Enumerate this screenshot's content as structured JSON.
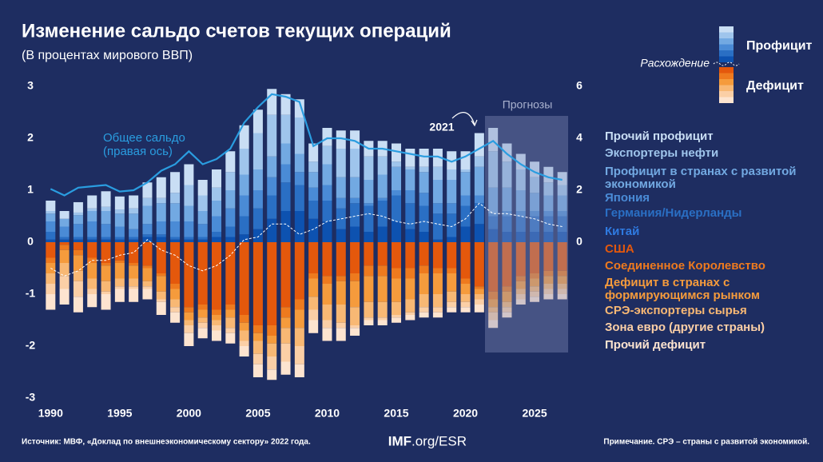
{
  "chart_data": {
    "type": "bar",
    "title": "Изменение сальдо счетов текущих операций",
    "subtitle": "(В процентах мирового ВВП)",
    "x": [
      1990,
      1991,
      1992,
      1993,
      1994,
      1995,
      1996,
      1997,
      1998,
      1999,
      2000,
      2001,
      2002,
      2003,
      2004,
      2005,
      2006,
      2007,
      2008,
      2009,
      2010,
      2011,
      2012,
      2013,
      2014,
      2015,
      2016,
      2017,
      2018,
      2019,
      2020,
      2021,
      2022,
      2023,
      2024,
      2025,
      2026,
      2027
    ],
    "xlim": [
      1989,
      2028
    ],
    "xticks": [
      1990,
      1995,
      2000,
      2005,
      2010,
      2015,
      2020,
      2025
    ],
    "ylim": [
      -3,
      3
    ],
    "yticks": [
      -3,
      -2,
      -1,
      0,
      1,
      2,
      3
    ],
    "y2lim": [
      -6,
      6
    ],
    "y2ticks": [
      0,
      2,
      4,
      6
    ],
    "legend_titles": {
      "surplus": "Профицит",
      "deficit": "Дефицит"
    },
    "annotations": {
      "year": "2021",
      "forecast": "Прогнозы"
    },
    "series": [
      {
        "name": "Китай",
        "color": "#0d52b0",
        "values": [
          0.05,
          0.05,
          0.05,
          0.05,
          0.05,
          0.05,
          0.05,
          0.1,
          0.1,
          0.05,
          0.05,
          0.05,
          0.1,
          0.1,
          0.15,
          0.25,
          0.45,
          0.6,
          0.6,
          0.45,
          0.4,
          0.25,
          0.3,
          0.2,
          0.3,
          0.4,
          0.25,
          0.2,
          0.05,
          0.1,
          0.3,
          0.35,
          0.25,
          0.2,
          0.2,
          0.2,
          0.2,
          0.2
        ]
      },
      {
        "name": "Германия/Нидерланды",
        "color": "#2a6fc4",
        "values": [
          0.15,
          0.05,
          0.05,
          0.05,
          0.05,
          0.05,
          0.05,
          0.05,
          0.05,
          0.05,
          0.05,
          0.05,
          0.1,
          0.2,
          0.35,
          0.4,
          0.45,
          0.55,
          0.5,
          0.35,
          0.4,
          0.4,
          0.45,
          0.5,
          0.5,
          0.5,
          0.5,
          0.5,
          0.5,
          0.45,
          0.4,
          0.4,
          0.25,
          0.3,
          0.3,
          0.3,
          0.3,
          0.3
        ]
      },
      {
        "name": "Япония",
        "color": "#4a8bd6",
        "values": [
          0.2,
          0.2,
          0.25,
          0.3,
          0.25,
          0.2,
          0.15,
          0.2,
          0.25,
          0.3,
          0.3,
          0.25,
          0.3,
          0.35,
          0.4,
          0.35,
          0.35,
          0.35,
          0.25,
          0.25,
          0.3,
          0.2,
          0.1,
          0.05,
          0.05,
          0.1,
          0.25,
          0.25,
          0.2,
          0.2,
          0.2,
          0.15,
          0.05,
          0.1,
          0.1,
          0.1,
          0.1,
          0.1
        ]
      },
      {
        "name": "Профицит в странах с развитой экономикой",
        "color": "#72a9e2",
        "values": [
          0.15,
          0.15,
          0.17,
          0.2,
          0.25,
          0.25,
          0.3,
          0.35,
          0.35,
          0.35,
          0.3,
          0.25,
          0.3,
          0.35,
          0.4,
          0.4,
          0.4,
          0.4,
          0.35,
          0.3,
          0.4,
          0.4,
          0.4,
          0.45,
          0.45,
          0.45,
          0.4,
          0.4,
          0.45,
          0.45,
          0.45,
          0.55,
          0.5,
          0.45,
          0.4,
          0.35,
          0.3,
          0.3
        ]
      },
      {
        "name": "Экспортеры нефти",
        "color": "#9fc5ec",
        "values": [
          0.05,
          0,
          0.05,
          0.05,
          0.08,
          0.08,
          0.1,
          0.15,
          0.1,
          0.2,
          0.4,
          0.3,
          0.25,
          0.35,
          0.5,
          0.7,
          0.8,
          0.55,
          0.7,
          0.2,
          0.35,
          0.55,
          0.55,
          0.45,
          0.35,
          0.1,
          0.05,
          0.1,
          0.25,
          0.2,
          0.05,
          0.2,
          0.7,
          0.5,
          0.4,
          0.3,
          0.25,
          0.2
        ]
      },
      {
        "name": "Прочий профицит",
        "color": "#c9def4",
        "values": [
          0.2,
          0.15,
          0.2,
          0.25,
          0.3,
          0.25,
          0.25,
          0.3,
          0.4,
          0.4,
          0.4,
          0.3,
          0.35,
          0.4,
          0.45,
          0.45,
          0.5,
          0.4,
          0.35,
          0.35,
          0.35,
          0.35,
          0.35,
          0.3,
          0.3,
          0.35,
          0.35,
          0.35,
          0.35,
          0.35,
          0.35,
          0.45,
          0.45,
          0.35,
          0.3,
          0.3,
          0.3,
          0.25
        ]
      },
      {
        "name": "США",
        "color": "#e4580c",
        "values": [
          -0.3,
          -0.05,
          -0.15,
          -0.3,
          -0.4,
          -0.35,
          -0.4,
          -0.45,
          -0.6,
          -0.8,
          -1.25,
          -1.2,
          -1.3,
          -1.2,
          -1.4,
          -1.6,
          -1.6,
          -1.25,
          -1.1,
          -0.6,
          -0.65,
          -0.65,
          -0.6,
          -0.45,
          -0.45,
          -0.5,
          -0.5,
          -0.45,
          -0.5,
          -0.5,
          -0.7,
          -0.85,
          -0.95,
          -0.85,
          -0.65,
          -0.6,
          -0.55,
          -0.55
        ]
      },
      {
        "name": "Соединенное Королевство",
        "color": "#ee7a1e",
        "values": [
          -0.1,
          -0.1,
          -0.1,
          -0.1,
          -0.05,
          -0.05,
          -0.05,
          -0.05,
          -0.05,
          -0.1,
          -0.1,
          -0.1,
          -0.1,
          -0.1,
          -0.15,
          -0.15,
          -0.2,
          -0.2,
          -0.2,
          -0.1,
          -0.15,
          -0.1,
          -0.15,
          -0.2,
          -0.2,
          -0.2,
          -0.2,
          -0.15,
          -0.1,
          -0.1,
          -0.1,
          -0.05,
          -0.15,
          -0.1,
          -0.1,
          -0.1,
          -0.1,
          -0.1
        ]
      },
      {
        "name": "Дефицит в странах с формирующимся рынком",
        "color": "#f59b3c",
        "values": [
          -0.2,
          -0.25,
          -0.3,
          -0.3,
          -0.3,
          -0.3,
          -0.25,
          -0.25,
          -0.3,
          -0.2,
          -0.15,
          -0.15,
          -0.1,
          -0.15,
          -0.15,
          -0.15,
          -0.15,
          -0.2,
          -0.35,
          -0.35,
          -0.4,
          -0.45,
          -0.5,
          -0.5,
          -0.5,
          -0.45,
          -0.4,
          -0.4,
          -0.4,
          -0.35,
          -0.2,
          -0.1,
          -0.15,
          -0.2,
          -0.15,
          -0.15,
          -0.15,
          -0.15
        ]
      },
      {
        "name": "СРЭ-экспортеры сырья",
        "color": "#f8b874",
        "values": [
          -0.2,
          -0.25,
          -0.2,
          -0.2,
          -0.2,
          -0.15,
          -0.15,
          -0.1,
          -0.15,
          -0.15,
          -0.1,
          -0.1,
          -0.1,
          -0.2,
          -0.2,
          -0.25,
          -0.25,
          -0.3,
          -0.35,
          -0.25,
          -0.3,
          -0.35,
          -0.35,
          -0.3,
          -0.3,
          -0.25,
          -0.25,
          -0.25,
          -0.25,
          -0.2,
          -0.15,
          -0.1,
          -0.1,
          -0.1,
          -0.1,
          -0.1,
          -0.1,
          -0.1
        ]
      },
      {
        "name": "Зона евро (другие страны)",
        "color": "#fbcfa6",
        "values": [
          -0.2,
          -0.25,
          -0.3,
          -0.1,
          -0.05,
          -0.05,
          -0.05,
          -0.05,
          -0.05,
          -0.1,
          -0.15,
          -0.1,
          -0.1,
          -0.1,
          -0.1,
          -0.2,
          -0.25,
          -0.35,
          -0.35,
          -0.2,
          -0.15,
          -0.1,
          -0.05,
          -0.05,
          -0.05,
          -0.05,
          -0.05,
          -0.1,
          -0.1,
          -0.1,
          -0.1,
          -0.1,
          -0.15,
          -0.1,
          -0.1,
          -0.1,
          -0.1,
          -0.1
        ]
      },
      {
        "name": "Прочий дефицит",
        "color": "#fde4d0",
        "values": [
          -0.3,
          -0.3,
          -0.3,
          -0.25,
          -0.3,
          -0.25,
          -0.25,
          -0.2,
          -0.25,
          -0.2,
          -0.25,
          -0.2,
          -0.2,
          -0.2,
          -0.2,
          -0.25,
          -0.2,
          -0.25,
          -0.25,
          -0.25,
          -0.25,
          -0.25,
          -0.15,
          -0.1,
          -0.1,
          -0.1,
          -0.1,
          -0.1,
          -0.1,
          -0.1,
          -0.1,
          -0.15,
          -0.15,
          -0.1,
          -0.1,
          -0.1,
          -0.1,
          -0.1
        ]
      },
      {
        "name": "Общее сальдо (правая ось)",
        "type": "line",
        "axis": "y2",
        "color": "#2a9de0",
        "values": [
          2.05,
          1.8,
          2.1,
          2.15,
          2.2,
          1.95,
          2.0,
          2.3,
          2.75,
          3.0,
          3.5,
          3.0,
          3.2,
          3.6,
          4.6,
          5.2,
          5.7,
          5.6,
          5.4,
          3.7,
          4.0,
          4.0,
          3.9,
          3.6,
          3.6,
          3.5,
          3.4,
          3.3,
          3.3,
          3.1,
          3.3,
          3.6,
          3.9,
          3.4,
          3.0,
          2.7,
          2.5,
          2.4
        ]
      },
      {
        "name": "Расхождение",
        "type": "line",
        "dashed": true,
        "color": "#ffffff",
        "values": [
          -0.5,
          -0.65,
          -0.55,
          -0.35,
          -0.35,
          -0.25,
          -0.2,
          0.05,
          -0.15,
          -0.25,
          -0.45,
          -0.55,
          -0.45,
          -0.25,
          0.05,
          0.1,
          0.35,
          0.35,
          0.15,
          0.25,
          0.4,
          0.45,
          0.5,
          0.55,
          0.5,
          0.4,
          0.35,
          0.4,
          0.35,
          0.3,
          0.45,
          0.75,
          0.55,
          0.55,
          0.5,
          0.45,
          0.35,
          0.3
        ]
      }
    ]
  },
  "footer": {
    "source": "Источник: МВФ, «Доклад по внешнеэкономическому сектору» 2022 года.",
    "logo_bold": "IMF",
    "logo_rest": ".org/ESR",
    "note": "Примечание. СРЭ – страны с развитой экономикой."
  }
}
